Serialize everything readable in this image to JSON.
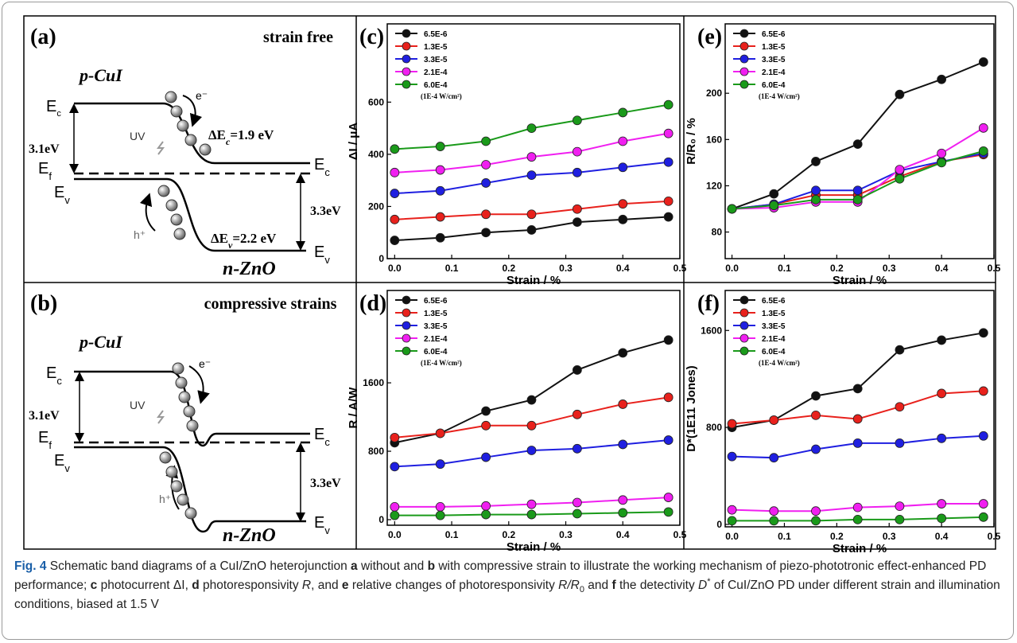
{
  "panels": [
    {
      "label": "(a)",
      "title": "strain free",
      "p_side": "p-CuI",
      "n_side": "n-ZnO",
      "gap_p": "3.1eV",
      "gap_n": "3.3eV",
      "light": "UV",
      "electron": "e⁻",
      "hole": "h⁺",
      "levels": {
        "Ec": {
          "main": "E",
          "sub": "c"
        },
        "Ef": {
          "main": "E",
          "sub": "f"
        },
        "Ev": {
          "main": "E",
          "sub": "v"
        }
      },
      "offsets": [
        {
          "main": "ΔE",
          "sub": "c",
          "rest": "=1.9 eV"
        },
        {
          "main": "ΔE",
          "sub": "v",
          "rest": "=2.2 eV"
        }
      ]
    },
    {
      "label": "(b)",
      "title": "compressive strains",
      "p_side": "p-CuI",
      "n_side": "n-ZnO",
      "gap_p": "3.1eV",
      "gap_n": "3.3eV",
      "light": "UV",
      "electron": "e⁻",
      "hole": "h⁺",
      "levels": {
        "Ec": {
          "main": "E",
          "sub": "c"
        },
        "Ef": {
          "main": "E",
          "sub": "f"
        },
        "Ev": {
          "main": "E",
          "sub": "v"
        }
      }
    }
  ],
  "chart_data": [
    {
      "type": "line",
      "panel": "(c)",
      "xlabel": "Strain / %",
      "ylabel": "ΔI / μA",
      "legend": "upper left",
      "legend_note": "(1E-4 W/cm²)",
      "x": [
        0,
        0.08,
        0.16,
        0.24,
        0.32,
        0.4,
        0.48
      ],
      "xlim": [
        -0.013,
        0.5
      ],
      "xticks": [
        {
          "value": 0,
          "label": "0.0"
        },
        0.1,
        0.2,
        0.3,
        0.4,
        0.5
      ],
      "ylim": [
        0,
        900
      ],
      "yticks": [
        0,
        200,
        400,
        600
      ],
      "series": [
        {
          "name": "6.5E-6",
          "color": "#111111",
          "values": [
            70,
            80,
            100,
            110,
            140,
            150,
            160
          ]
        },
        {
          "name": "1.3E-5",
          "color": "#e8211c",
          "values": [
            150,
            160,
            170,
            170,
            190,
            210,
            220
          ]
        },
        {
          "name": "3.3E-5",
          "color": "#1f1fe0",
          "values": [
            250,
            260,
            290,
            320,
            330,
            350,
            370
          ]
        },
        {
          "name": "2.1E-4",
          "color": "#f01ff0",
          "values": [
            330,
            340,
            360,
            390,
            410,
            450,
            480
          ]
        },
        {
          "name": "6.0E-4",
          "color": "#1a9a1a",
          "values": [
            420,
            430,
            450,
            500,
            530,
            560,
            590
          ]
        }
      ]
    },
    {
      "type": "line",
      "panel": "(d)",
      "xlabel": "Strain / %",
      "ylabel": "R / A/W",
      "legend": "upper left",
      "legend_note": "(1E-4 W/cm²)",
      "x": [
        0,
        0.08,
        0.16,
        0.24,
        0.32,
        0.4,
        0.48
      ],
      "xlim": [
        -0.013,
        0.5
      ],
      "xticks": [
        {
          "value": 0,
          "label": "0.0"
        },
        0.1,
        0.2,
        0.3,
        0.4,
        0.5
      ],
      "ylim": [
        -65,
        2680
      ],
      "yticks": [
        0,
        800,
        1600
      ],
      "series": [
        {
          "name": "6.5E-6",
          "color": "#111111",
          "values": [
            900,
            1010,
            1270,
            1400,
            1750,
            1950,
            2100
          ]
        },
        {
          "name": "1.3E-5",
          "color": "#e8211c",
          "values": [
            960,
            1010,
            1100,
            1100,
            1230,
            1350,
            1430
          ]
        },
        {
          "name": "3.3E-5",
          "color": "#1f1fe0",
          "values": [
            620,
            650,
            730,
            810,
            830,
            880,
            930
          ]
        },
        {
          "name": "2.1E-4",
          "color": "#f01ff0",
          "values": [
            150,
            150,
            160,
            180,
            200,
            230,
            260
          ]
        },
        {
          "name": "6.0E-4",
          "color": "#1a9a1a",
          "values": [
            50,
            50,
            60,
            60,
            70,
            80,
            90
          ]
        }
      ]
    },
    {
      "type": "line",
      "panel": "(e)",
      "xlabel": "Strain / %",
      "ylabel": "R/R₀ / %",
      "legend": "upper left",
      "legend_note": "(1E-4 W/cm²)",
      "x": [
        0,
        0.08,
        0.16,
        0.24,
        0.32,
        0.4,
        0.48
      ],
      "xlim": [
        -0.013,
        0.5
      ],
      "xticks": [
        {
          "value": 0,
          "label": "0.0"
        },
        0.1,
        0.2,
        0.3,
        0.4,
        0.5
      ],
      "ylim": [
        57,
        260
      ],
      "yticks": [
        80,
        120,
        160,
        200
      ],
      "series": [
        {
          "name": "6.5E-6",
          "color": "#111111",
          "values": [
            100,
            113,
            141,
            156,
            199,
            212,
            227
          ]
        },
        {
          "name": "1.3E-5",
          "color": "#e8211c",
          "values": [
            100,
            104,
            112,
            112,
            128,
            141,
            147
          ]
        },
        {
          "name": "3.3E-5",
          "color": "#1f1fe0",
          "values": [
            100,
            104,
            116,
            116,
            133,
            141,
            148
          ]
        },
        {
          "name": "2.1E-4",
          "color": "#f01ff0",
          "values": [
            100,
            101,
            106,
            106,
            134,
            148,
            170
          ]
        },
        {
          "name": "6.0E-4",
          "color": "#1a9a1a",
          "values": [
            100,
            103,
            108,
            108,
            126,
            140,
            150
          ]
        }
      ]
    },
    {
      "type": "line",
      "panel": "(f)",
      "xlabel": "Strain / %",
      "ylabel": "D*(1E11 Jones)",
      "legend": "upper left",
      "legend_note": "(1E-4 W/cm²)",
      "x": [
        0,
        0.08,
        0.16,
        0.24,
        0.32,
        0.4,
        0.48
      ],
      "xlim": [
        -0.013,
        0.5
      ],
      "xticks": [
        {
          "value": 0,
          "label": "0.0"
        },
        0.1,
        0.2,
        0.3,
        0.4,
        0.5
      ],
      "ylim": [
        -20,
        1930
      ],
      "yticks": [
        0,
        800,
        1600
      ],
      "series": [
        {
          "name": "6.5E-6",
          "color": "#111111",
          "values": [
            800,
            860,
            1060,
            1120,
            1440,
            1520,
            1580
          ]
        },
        {
          "name": "1.3E-5",
          "color": "#e8211c",
          "values": [
            830,
            860,
            900,
            870,
            970,
            1080,
            1100
          ]
        },
        {
          "name": "3.3E-5",
          "color": "#1f1fe0",
          "values": [
            560,
            550,
            620,
            670,
            670,
            710,
            730
          ]
        },
        {
          "name": "2.1E-4",
          "color": "#f01ff0",
          "values": [
            120,
            110,
            110,
            140,
            150,
            170,
            170
          ]
        },
        {
          "name": "6.0E-4",
          "color": "#1a9a1a",
          "values": [
            30,
            30,
            30,
            40,
            40,
            50,
            60
          ]
        }
      ]
    }
  ],
  "caption": [
    {
      "text": "Fig. 4",
      "style": "bold"
    },
    {
      "text": " Schematic band diagrams of a CuI/ZnO heterojunction ",
      "style": "normal"
    },
    {
      "text": "a",
      "style": "bold"
    },
    {
      "text": " without and ",
      "style": "normal"
    },
    {
      "text": "b",
      "style": "bold"
    },
    {
      "text": " with compressive strain to illustrate the working mechanism of piezo-phototronic effect-enhanced PD performance; ",
      "style": "normal"
    },
    {
      "text": "c",
      "style": "bold"
    },
    {
      "text": " photocurrent ΔI, ",
      "style": "normal"
    },
    {
      "text": "d",
      "style": "bold"
    },
    {
      "text": " photoresponsivity ",
      "style": "normal"
    },
    {
      "text": "R",
      "style": "italic"
    },
    {
      "text": ", and ",
      "style": "normal"
    },
    {
      "text": "e",
      "style": "bold"
    },
    {
      "text": " relative changes of photoresponsivity ",
      "style": "normal"
    },
    {
      "text": "R/R",
      "style": "italic"
    },
    {
      "text": "0",
      "style": "sub"
    },
    {
      "text": " and ",
      "style": "normal"
    },
    {
      "text": "f",
      "style": "bold"
    },
    {
      "text": " the detectivity ",
      "style": "normal"
    },
    {
      "text": "D",
      "style": "italic"
    },
    {
      "text": "*",
      "style": "sup"
    },
    {
      "text": " of CuI/ZnO PD under different strain and illumination conditions, biased at 1.5 V",
      "style": "normal"
    }
  ]
}
